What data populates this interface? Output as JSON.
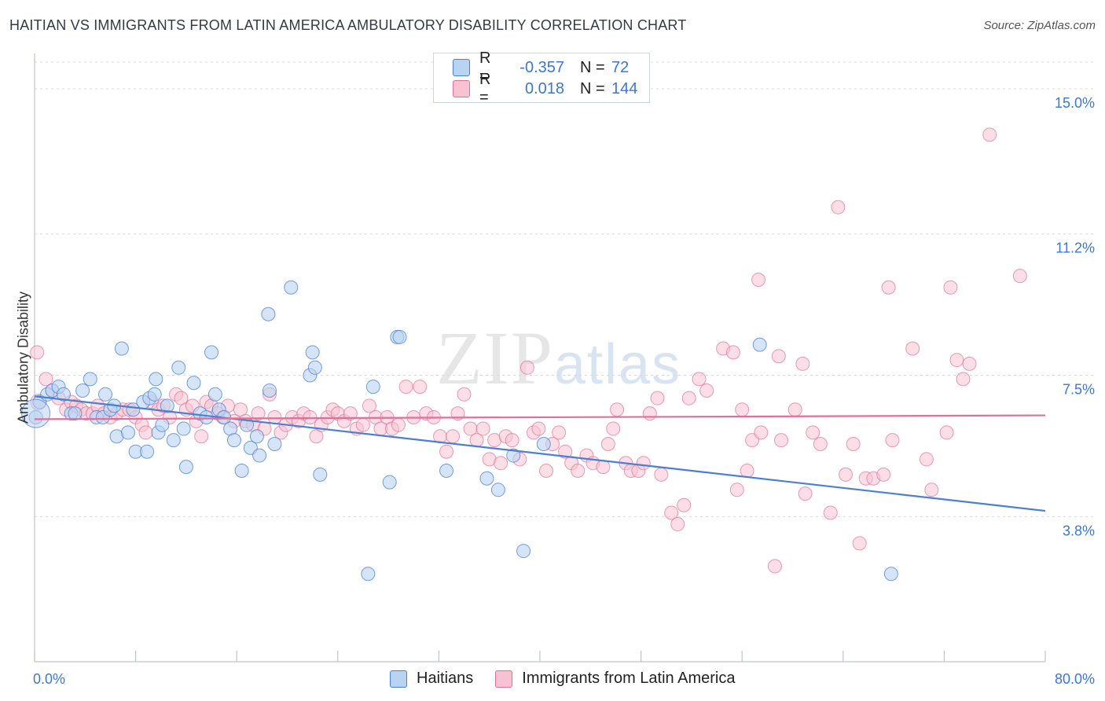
{
  "title": "HAITIAN VS IMMIGRANTS FROM LATIN AMERICA AMBULATORY DISABILITY CORRELATION CHART",
  "source": "Source: ZipAtlas.com",
  "watermark": {
    "zip": "ZIP",
    "atlas": "atlas"
  },
  "legend_top": {
    "rows": [
      {
        "r_label": "R =",
        "r_value": "-0.357",
        "n_label": "N =",
        "n_value": "72",
        "color": "#b9d3f2"
      },
      {
        "r_label": "R =",
        "r_value": "0.018",
        "n_label": "N =",
        "n_value": "144",
        "color": "#f7c2d2"
      }
    ]
  },
  "legend_bottom": {
    "items": [
      {
        "label": "Haitians",
        "color": "#b9d3f2"
      },
      {
        "label": "Immigrants from Latin America",
        "color": "#f7c2d2"
      }
    ]
  },
  "chart_data": {
    "type": "scatter",
    "title": "HAITIAN VS IMMIGRANTS FROM LATIN AMERICA AMBULATORY DISABILITY CORRELATION CHART",
    "xlabel": "",
    "ylabel": "Ambulatory Disability",
    "xlim": [
      0,
      80
    ],
    "ylim": [
      0,
      15.7
    ],
    "x_ticks": [
      "0.0%",
      "80.0%"
    ],
    "y_ticks": [
      {
        "value": 3.8,
        "label": "3.8%"
      },
      {
        "value": 7.5,
        "label": "7.5%"
      },
      {
        "value": 11.2,
        "label": "11.2%"
      },
      {
        "value": 15.0,
        "label": "15.0%"
      }
    ],
    "grid": "horizontal dashed",
    "series": [
      {
        "name": "Haitians",
        "color": "#4a7fd4",
        "fill": "#b9d3f2",
        "trend": {
          "x": [
            0,
            80
          ],
          "y": [
            6.95,
            3.95
          ]
        },
        "points": [
          [
            0.1,
            6.4
          ],
          [
            0.4,
            6.8
          ],
          [
            1.0,
            7.0
          ],
          [
            1.4,
            7.1
          ],
          [
            1.9,
            7.2
          ],
          [
            2.3,
            7.0
          ],
          [
            2.9,
            6.5
          ],
          [
            3.2,
            6.5
          ],
          [
            3.8,
            7.1
          ],
          [
            4.4,
            7.4
          ],
          [
            4.9,
            6.4
          ],
          [
            5.4,
            6.4
          ],
          [
            5.6,
            7.0
          ],
          [
            6.0,
            6.6
          ],
          [
            6.3,
            6.7
          ],
          [
            6.5,
            5.9
          ],
          [
            6.9,
            8.2
          ],
          [
            7.4,
            6.0
          ],
          [
            7.8,
            6.6
          ],
          [
            8.0,
            5.5
          ],
          [
            8.6,
            6.8
          ],
          [
            8.9,
            5.5
          ],
          [
            9.1,
            6.9
          ],
          [
            9.5,
            7.0
          ],
          [
            9.6,
            7.4
          ],
          [
            9.8,
            6.0
          ],
          [
            10.1,
            6.2
          ],
          [
            10.5,
            6.7
          ],
          [
            11.0,
            5.8
          ],
          [
            11.4,
            7.7
          ],
          [
            11.8,
            6.1
          ],
          [
            12.0,
            5.1
          ],
          [
            12.6,
            7.3
          ],
          [
            13.1,
            6.5
          ],
          [
            13.6,
            6.4
          ],
          [
            14.0,
            8.1
          ],
          [
            14.3,
            7.0
          ],
          [
            14.6,
            6.6
          ],
          [
            15.0,
            6.4
          ],
          [
            15.5,
            6.1
          ],
          [
            15.8,
            5.8
          ],
          [
            16.4,
            5.0
          ],
          [
            16.8,
            6.2
          ],
          [
            17.1,
            5.6
          ],
          [
            17.6,
            5.9
          ],
          [
            17.8,
            5.4
          ],
          [
            18.6,
            7.1
          ],
          [
            18.5,
            9.1
          ],
          [
            19.0,
            5.7
          ],
          [
            20.3,
            9.8
          ],
          [
            21.8,
            7.5
          ],
          [
            22.0,
            8.1
          ],
          [
            22.2,
            7.7
          ],
          [
            22.6,
            4.9
          ],
          [
            26.4,
            2.3
          ],
          [
            26.8,
            7.2
          ],
          [
            28.1,
            4.7
          ],
          [
            28.7,
            8.5
          ],
          [
            28.9,
            8.5
          ],
          [
            32.6,
            5.0
          ],
          [
            35.8,
            4.8
          ],
          [
            36.7,
            4.5
          ],
          [
            37.9,
            5.4
          ],
          [
            38.7,
            2.9
          ],
          [
            40.3,
            5.7
          ],
          [
            57.4,
            8.3
          ],
          [
            67.8,
            2.3
          ]
        ]
      },
      {
        "name": "Immigrants from Latin America",
        "color": "#e0709a",
        "fill": "#f7c2d2",
        "trend": {
          "x": [
            0,
            80
          ],
          "y": [
            6.35,
            6.45
          ]
        },
        "points": [
          [
            0.2,
            8.1
          ],
          [
            0.9,
            7.4
          ],
          [
            1.4,
            7.1
          ],
          [
            1.9,
            6.9
          ],
          [
            2.5,
            6.6
          ],
          [
            2.9,
            6.8
          ],
          [
            3.3,
            6.7
          ],
          [
            3.7,
            6.6
          ],
          [
            4.1,
            6.5
          ],
          [
            4.6,
            6.5
          ],
          [
            5.0,
            6.7
          ],
          [
            5.5,
            6.5
          ],
          [
            6.0,
            6.4
          ],
          [
            6.5,
            6.5
          ],
          [
            7.0,
            6.6
          ],
          [
            7.5,
            6.6
          ],
          [
            8.0,
            6.4
          ],
          [
            8.5,
            6.2
          ],
          [
            8.8,
            6.0
          ],
          [
            9.3,
            6.8
          ],
          [
            9.8,
            6.6
          ],
          [
            10.2,
            6.7
          ],
          [
            10.7,
            6.4
          ],
          [
            11.2,
            7.0
          ],
          [
            11.6,
            6.9
          ],
          [
            12.0,
            6.6
          ],
          [
            12.5,
            6.7
          ],
          [
            12.8,
            6.3
          ],
          [
            13.2,
            5.9
          ],
          [
            13.6,
            6.8
          ],
          [
            14.0,
            6.7
          ],
          [
            14.5,
            6.5
          ],
          [
            14.9,
            6.4
          ],
          [
            15.3,
            6.7
          ],
          [
            15.8,
            6.3
          ],
          [
            16.3,
            6.6
          ],
          [
            16.7,
            6.3
          ],
          [
            17.3,
            6.2
          ],
          [
            17.7,
            6.5
          ],
          [
            18.2,
            6.1
          ],
          [
            18.6,
            7.0
          ],
          [
            19.0,
            6.4
          ],
          [
            19.5,
            6.0
          ],
          [
            19.9,
            6.2
          ],
          [
            20.4,
            6.4
          ],
          [
            20.9,
            6.3
          ],
          [
            21.3,
            6.5
          ],
          [
            21.8,
            6.4
          ],
          [
            22.3,
            5.9
          ],
          [
            22.7,
            6.2
          ],
          [
            23.2,
            6.4
          ],
          [
            23.6,
            6.6
          ],
          [
            24.0,
            6.5
          ],
          [
            24.5,
            6.3
          ],
          [
            25.0,
            6.5
          ],
          [
            25.5,
            6.1
          ],
          [
            26.0,
            6.2
          ],
          [
            26.5,
            6.7
          ],
          [
            27.0,
            6.4
          ],
          [
            27.4,
            6.1
          ],
          [
            27.9,
            6.4
          ],
          [
            28.3,
            6.1
          ],
          [
            28.8,
            6.2
          ],
          [
            29.4,
            7.2
          ],
          [
            30.0,
            6.4
          ],
          [
            30.5,
            7.2
          ],
          [
            31.0,
            6.5
          ],
          [
            31.6,
            6.4
          ],
          [
            32.1,
            5.9
          ],
          [
            32.6,
            5.5
          ],
          [
            33.1,
            5.9
          ],
          [
            33.5,
            6.5
          ],
          [
            34.0,
            7.0
          ],
          [
            34.5,
            6.1
          ],
          [
            35.0,
            5.8
          ],
          [
            35.5,
            6.1
          ],
          [
            36.0,
            5.3
          ],
          [
            36.4,
            5.8
          ],
          [
            36.9,
            5.2
          ],
          [
            37.3,
            5.9
          ],
          [
            37.8,
            5.8
          ],
          [
            38.4,
            5.3
          ],
          [
            39.0,
            7.7
          ],
          [
            39.5,
            6.0
          ],
          [
            39.9,
            6.1
          ],
          [
            40.5,
            5.0
          ],
          [
            41.0,
            5.7
          ],
          [
            41.5,
            6.0
          ],
          [
            42.0,
            5.5
          ],
          [
            42.5,
            5.2
          ],
          [
            43.0,
            5.0
          ],
          [
            43.7,
            5.4
          ],
          [
            44.2,
            5.2
          ],
          [
            45.0,
            5.1
          ],
          [
            45.4,
            5.7
          ],
          [
            45.8,
            6.1
          ],
          [
            46.1,
            6.6
          ],
          [
            46.8,
            5.2
          ],
          [
            47.2,
            5.0
          ],
          [
            47.8,
            5.0
          ],
          [
            48.2,
            5.2
          ],
          [
            48.7,
            6.5
          ],
          [
            49.3,
            6.9
          ],
          [
            49.6,
            4.9
          ],
          [
            50.4,
            3.9
          ],
          [
            50.9,
            3.6
          ],
          [
            51.4,
            4.1
          ],
          [
            51.8,
            6.9
          ],
          [
            52.6,
            7.4
          ],
          [
            53.2,
            7.1
          ],
          [
            54.5,
            8.2
          ],
          [
            55.3,
            8.1
          ],
          [
            55.6,
            4.5
          ],
          [
            56.0,
            6.6
          ],
          [
            56.4,
            5.0
          ],
          [
            56.8,
            5.8
          ],
          [
            57.3,
            10.0
          ],
          [
            57.5,
            6.0
          ],
          [
            58.6,
            2.5
          ],
          [
            58.9,
            8.0
          ],
          [
            59.1,
            5.8
          ],
          [
            60.2,
            6.6
          ],
          [
            60.8,
            7.8
          ],
          [
            61.0,
            4.4
          ],
          [
            61.6,
            6.0
          ],
          [
            62.2,
            5.7
          ],
          [
            63.0,
            3.9
          ],
          [
            63.6,
            11.9
          ],
          [
            64.2,
            4.9
          ],
          [
            64.8,
            5.7
          ],
          [
            65.3,
            3.1
          ],
          [
            65.8,
            4.8
          ],
          [
            66.4,
            4.8
          ],
          [
            67.2,
            4.9
          ],
          [
            67.6,
            9.8
          ],
          [
            67.9,
            5.8
          ],
          [
            69.5,
            8.2
          ],
          [
            70.6,
            5.3
          ],
          [
            71.0,
            4.5
          ],
          [
            72.2,
            6.0
          ],
          [
            72.5,
            9.8
          ],
          [
            73.0,
            7.9
          ],
          [
            73.5,
            7.4
          ],
          [
            74.0,
            7.8
          ],
          [
            75.6,
            13.8
          ],
          [
            78.0,
            10.1
          ]
        ]
      }
    ]
  }
}
